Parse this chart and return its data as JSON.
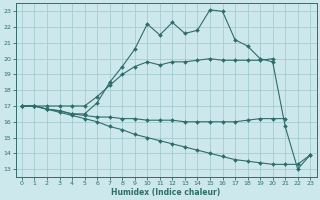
{
  "xlabel": "Humidex (Indice chaleur)",
  "bg_color": "#cce8ec",
  "line_color": "#2d6e6a",
  "grid_color": "#9fc8cc",
  "xlim": [
    -0.5,
    23.5
  ],
  "ylim": [
    12.5,
    23.5
  ],
  "xticks": [
    0,
    1,
    2,
    3,
    4,
    5,
    6,
    7,
    8,
    9,
    10,
    11,
    12,
    13,
    14,
    15,
    16,
    17,
    18,
    19,
    20,
    21,
    22,
    23
  ],
  "yticks": [
    13,
    14,
    15,
    16,
    17,
    18,
    19,
    20,
    21,
    22,
    23
  ],
  "lines": [
    {
      "x": [
        0,
        1,
        2,
        3,
        4,
        5,
        6,
        7,
        8,
        9,
        10,
        11,
        12,
        13,
        14,
        15,
        16,
        17,
        18,
        19,
        20,
        21,
        22,
        23
      ],
      "y": [
        17,
        17,
        16.8,
        16.7,
        16.5,
        16.5,
        17.2,
        18.5,
        19.5,
        20.6,
        22.2,
        21.5,
        22.3,
        21.6,
        21.8,
        23.1,
        23.0,
        21.2,
        20.8,
        20.0,
        19.8,
        15.7,
        13.0,
        13.9
      ]
    },
    {
      "x": [
        0,
        1,
        2,
        3,
        4,
        5,
        6,
        7,
        8,
        9,
        10,
        11,
        12,
        13,
        14,
        15,
        16,
        17,
        18,
        19,
        20
      ],
      "y": [
        17,
        17,
        17,
        17,
        17,
        17,
        17.6,
        18.3,
        19.0,
        19.5,
        19.8,
        19.6,
        19.8,
        19.8,
        19.9,
        20.0,
        19.9,
        19.9,
        19.9,
        19.9,
        20.0
      ]
    },
    {
      "x": [
        0,
        1,
        2,
        3,
        4,
        5,
        6,
        7,
        8,
        9,
        10,
        11,
        12,
        13,
        14,
        15,
        16,
        17,
        18,
        19,
        20,
        21
      ],
      "y": [
        17,
        17,
        16.8,
        16.7,
        16.5,
        16.4,
        16.3,
        16.3,
        16.2,
        16.2,
        16.1,
        16.1,
        16.1,
        16.0,
        16.0,
        16.0,
        16.0,
        16.0,
        16.1,
        16.2,
        16.2,
        16.2
      ]
    },
    {
      "x": [
        0,
        1,
        2,
        3,
        4,
        5,
        6,
        7,
        8,
        9,
        10,
        11,
        12,
        13,
        14,
        15,
        16,
        17,
        18,
        19,
        20,
        21,
        22,
        23
      ],
      "y": [
        17,
        17,
        16.8,
        16.6,
        16.4,
        16.2,
        16.0,
        15.7,
        15.5,
        15.2,
        15.0,
        14.8,
        14.6,
        14.4,
        14.2,
        14.0,
        13.8,
        13.6,
        13.5,
        13.4,
        13.3,
        13.3,
        13.3,
        13.9
      ]
    }
  ]
}
